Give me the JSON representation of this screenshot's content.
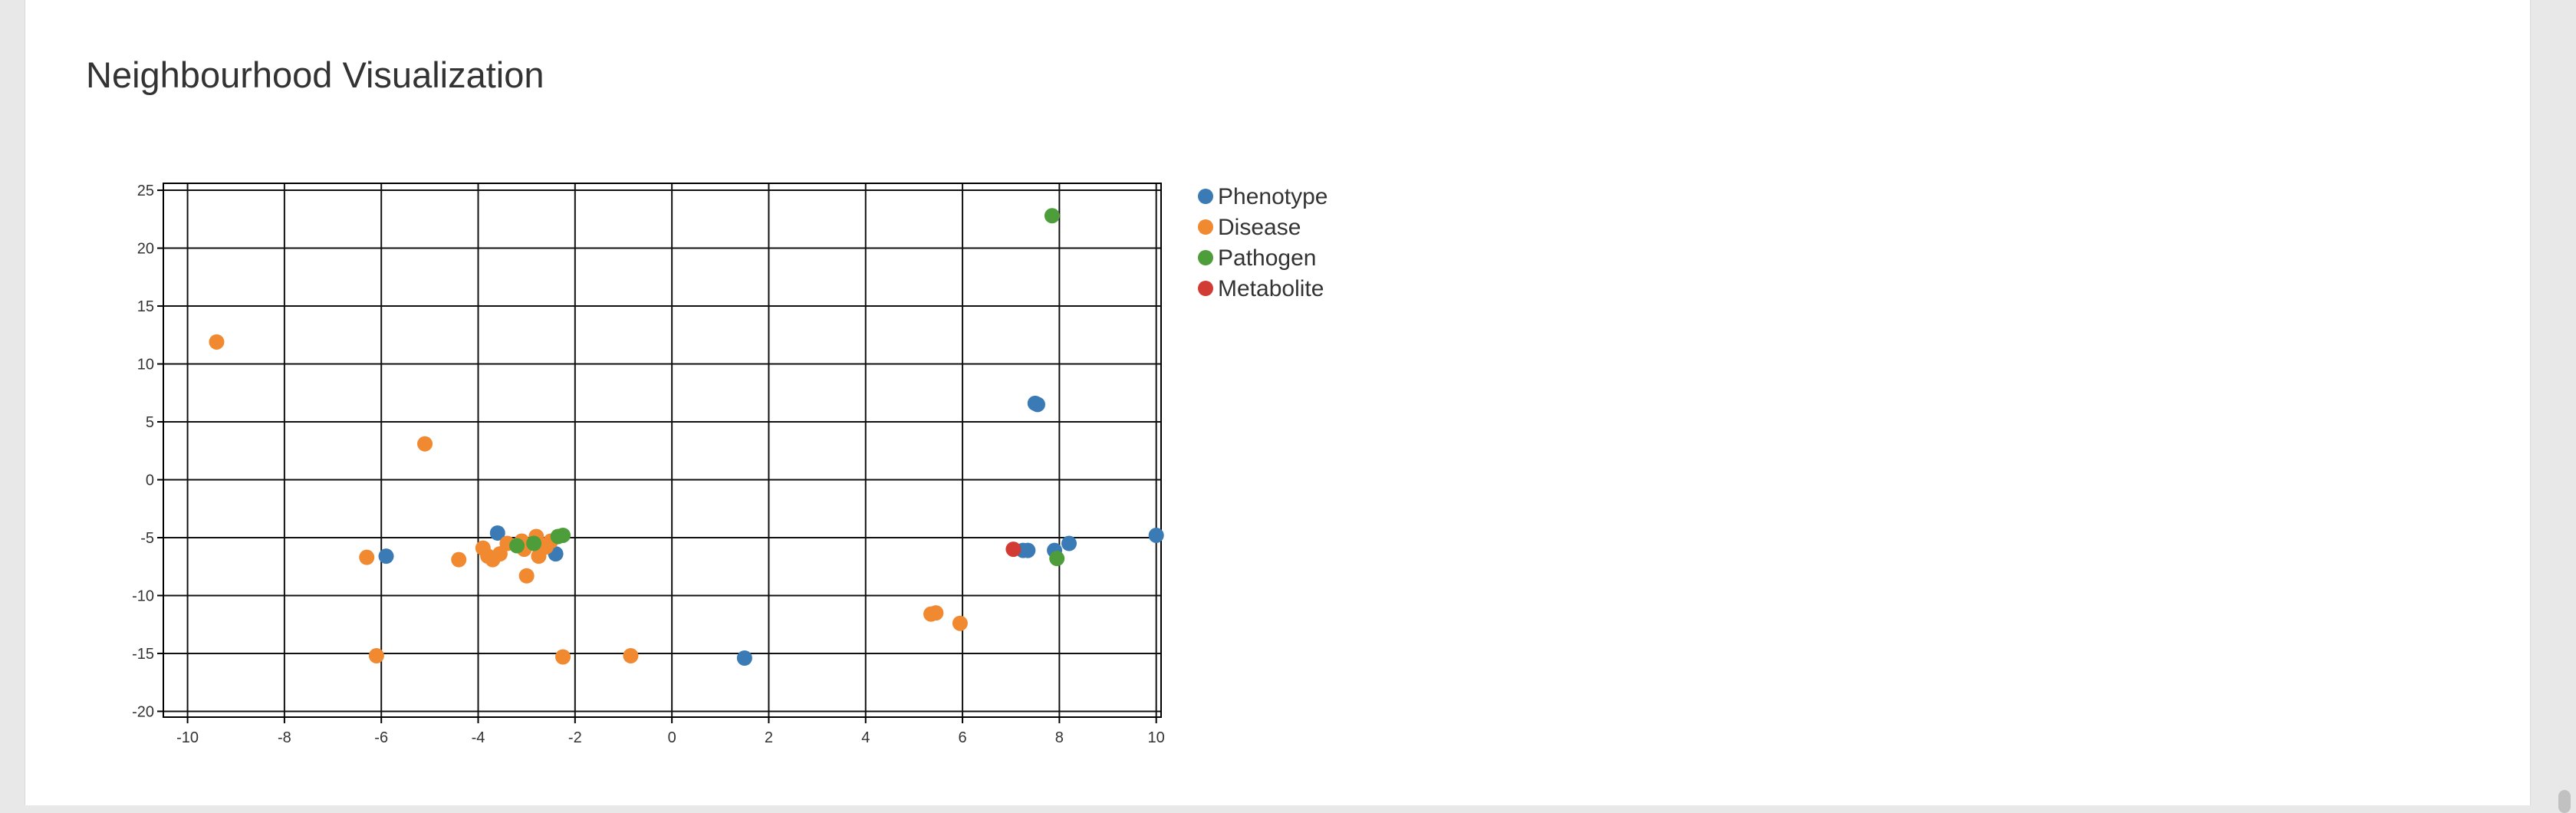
{
  "page": {
    "title": "Neighbourhood Visualization"
  },
  "chart_data": {
    "type": "scatter",
    "title": "",
    "xlabel": "",
    "ylabel": "",
    "xlim": [
      -10.5,
      10.1
    ],
    "ylim": [
      -20.5,
      25.6
    ],
    "xticks": [
      -10,
      -8,
      -6,
      -4,
      -2,
      0,
      2,
      4,
      6,
      8,
      10
    ],
    "yticks": [
      25,
      20,
      15,
      10,
      5,
      0,
      -5,
      -10,
      -15,
      -20
    ],
    "grid": true,
    "legend_position": "right",
    "series": [
      {
        "name": "Phenotype",
        "color": "#3a7ab5",
        "points": [
          {
            "x": -5.9,
            "y": -6.6
          },
          {
            "x": -3.6,
            "y": -4.6
          },
          {
            "x": -2.4,
            "y": -6.4
          },
          {
            "x": 1.5,
            "y": -15.4
          },
          {
            "x": 7.5,
            "y": 6.6
          },
          {
            "x": 7.55,
            "y": 6.5
          },
          {
            "x": 7.25,
            "y": -6.1
          },
          {
            "x": 7.35,
            "y": -6.1
          },
          {
            "x": 7.9,
            "y": -6.1
          },
          {
            "x": 8.2,
            "y": -5.5
          },
          {
            "x": 10.0,
            "y": -4.8
          }
        ]
      },
      {
        "name": "Disease",
        "color": "#f0892f",
        "points": [
          {
            "x": -9.4,
            "y": 11.9
          },
          {
            "x": -5.1,
            "y": 3.1
          },
          {
            "x": -6.3,
            "y": -6.7
          },
          {
            "x": -6.1,
            "y": -15.2
          },
          {
            "x": -4.4,
            "y": -6.9
          },
          {
            "x": -3.9,
            "y": -5.9
          },
          {
            "x": -3.8,
            "y": -6.6
          },
          {
            "x": -3.7,
            "y": -6.9
          },
          {
            "x": -3.55,
            "y": -6.4
          },
          {
            "x": -3.4,
            "y": -5.5
          },
          {
            "x": -3.1,
            "y": -5.3
          },
          {
            "x": -3.05,
            "y": -6.0
          },
          {
            "x": -3.0,
            "y": -8.3
          },
          {
            "x": -2.8,
            "y": -4.9
          },
          {
            "x": -2.75,
            "y": -6.6
          },
          {
            "x": -2.6,
            "y": -5.8
          },
          {
            "x": -2.5,
            "y": -5.3
          },
          {
            "x": -2.25,
            "y": -15.3
          },
          {
            "x": -0.85,
            "y": -15.2
          },
          {
            "x": 5.35,
            "y": -11.6
          },
          {
            "x": 5.45,
            "y": -11.5
          },
          {
            "x": 5.95,
            "y": -12.4
          }
        ]
      },
      {
        "name": "Pathogen",
        "color": "#4d9e3a",
        "points": [
          {
            "x": -3.2,
            "y": -5.7
          },
          {
            "x": -2.85,
            "y": -5.5
          },
          {
            "x": -2.35,
            "y": -4.9
          },
          {
            "x": -2.25,
            "y": -4.8
          },
          {
            "x": 7.85,
            "y": 22.8
          },
          {
            "x": 7.95,
            "y": -6.8
          }
        ]
      },
      {
        "name": "Metabolite",
        "color": "#d13b33",
        "points": [
          {
            "x": 7.05,
            "y": -6.0
          }
        ]
      }
    ]
  }
}
